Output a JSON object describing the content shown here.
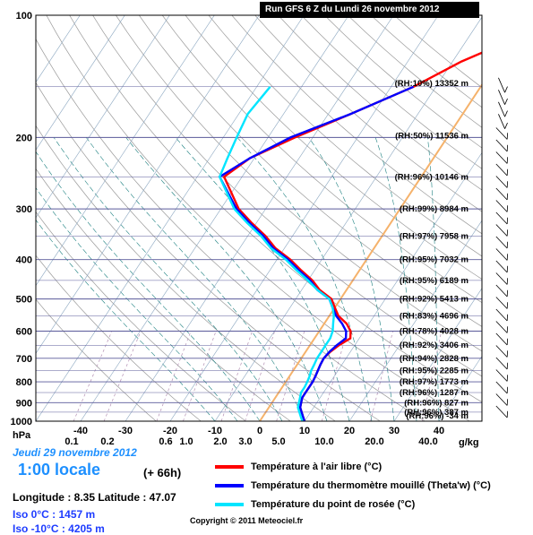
{
  "header": {
    "run_title": "Run GFS 6 Z du Lundi 26 novembre 2012"
  },
  "info": {
    "date": "Jeudi 29 novembre 2012",
    "local_time": "1:00 locale",
    "forecast_offset": "(+ 66h)",
    "coords": "Longitude : 8.35  Latitude : 47.07",
    "iso0": "Iso 0°C : 1457 m",
    "iso10": "Iso -10°C : 4205 m",
    "copyright": "Copyright © 2011 Meteociel.fr"
  },
  "legend": [
    {
      "label": "Température à l'air libre (°C)",
      "color": "#ff0000"
    },
    {
      "label": "Température du thermomètre mouillé (Theta'w) (°C)",
      "color": "#0000ff"
    },
    {
      "label": "Température du point de rosée (°C)",
      "color": "#00e5ff"
    }
  ],
  "colors": {
    "isobar": "#5a5a9a",
    "dry_adiabat": "#999999",
    "moist_adiabat": "#1a7f7f",
    "mixing_ratio": "#b38fb3",
    "iso0": "#f5b26b"
  },
  "chart_data": {
    "type": "line",
    "title": "Run GFS 6 Z du Lundi 26 novembre 2012",
    "y_axis_label": "hPa",
    "y_scale": "log",
    "y_range": [
      1000,
      100
    ],
    "y_ticks": [
      100,
      200,
      300,
      400,
      500,
      600,
      700,
      800,
      900,
      1000
    ],
    "x_ticks": [
      -40,
      -30,
      -20,
      -10,
      0,
      10,
      20,
      30,
      40
    ],
    "mixing_ratio_label": "g/kg",
    "mixing_ratio_ticks": [
      "0.1",
      "0.2",
      "0.6",
      "1.0",
      "2.0",
      "3.0",
      "5.0",
      "10.0",
      "20.0",
      "40.0"
    ],
    "series": [
      {
        "name": "Température à l'air libre (°C)",
        "color": "#ff0000",
        "points": [
          [
            10,
            1000
          ],
          [
            9,
            975
          ],
          [
            8,
            950
          ],
          [
            7,
            925
          ],
          [
            6.5,
            900
          ],
          [
            6,
            875
          ],
          [
            6,
            850
          ],
          [
            6,
            825
          ],
          [
            6,
            800
          ],
          [
            5.8,
            775
          ],
          [
            5.5,
            750
          ],
          [
            5.2,
            725
          ],
          [
            5,
            700
          ],
          [
            5.5,
            675
          ],
          [
            6.5,
            650
          ],
          [
            8,
            625
          ],
          [
            7,
            600
          ],
          [
            5,
            575
          ],
          [
            2,
            550
          ],
          [
            0,
            525
          ],
          [
            -2,
            500
          ],
          [
            -6,
            475
          ],
          [
            -9,
            450
          ],
          [
            -13,
            425
          ],
          [
            -17,
            400
          ],
          [
            -22,
            375
          ],
          [
            -26,
            350
          ],
          [
            -31,
            325
          ],
          [
            -36,
            300
          ],
          [
            -44,
            250
          ],
          [
            -41,
            225
          ],
          [
            -34,
            200
          ],
          [
            -25,
            175
          ],
          [
            -15,
            150
          ],
          [
            -8,
            130
          ],
          [
            0,
            115
          ],
          [
            8,
            100
          ]
        ]
      },
      {
        "name": "Température du thermomètre mouillé (Theta'w) (°C)",
        "color": "#0000ff",
        "points": [
          [
            10,
            1000
          ],
          [
            9,
            975
          ],
          [
            8,
            950
          ],
          [
            7,
            925
          ],
          [
            6.5,
            900
          ],
          [
            6,
            875
          ],
          [
            6,
            850
          ],
          [
            6,
            825
          ],
          [
            6,
            800
          ],
          [
            5.8,
            775
          ],
          [
            5.5,
            750
          ],
          [
            5.2,
            725
          ],
          [
            5,
            700
          ],
          [
            5.3,
            675
          ],
          [
            6,
            650
          ],
          [
            7,
            625
          ],
          [
            6,
            600
          ],
          [
            4,
            575
          ],
          [
            1.5,
            550
          ],
          [
            -0.5,
            525
          ],
          [
            -2.5,
            500
          ],
          [
            -6.5,
            475
          ],
          [
            -9.5,
            450
          ],
          [
            -13.5,
            425
          ],
          [
            -17.5,
            400
          ],
          [
            -22.5,
            375
          ],
          [
            -26.5,
            350
          ],
          [
            -31.5,
            325
          ],
          [
            -36.5,
            300
          ],
          [
            -45,
            250
          ],
          [
            -41,
            225
          ],
          [
            -35,
            200
          ],
          [
            -25,
            175
          ],
          [
            -15,
            150
          ]
        ]
      },
      {
        "name": "Température du point de rosée (°C)",
        "color": "#00e5ff",
        "points": [
          [
            9.5,
            1000
          ],
          [
            8.5,
            975
          ],
          [
            7.5,
            950
          ],
          [
            6.5,
            925
          ],
          [
            6,
            900
          ],
          [
            5.5,
            875
          ],
          [
            5,
            850
          ],
          [
            5,
            825
          ],
          [
            4.8,
            800
          ],
          [
            4.5,
            775
          ],
          [
            4,
            750
          ],
          [
            3.8,
            725
          ],
          [
            3.5,
            700
          ],
          [
            3.5,
            675
          ],
          [
            3.5,
            650
          ],
          [
            3.5,
            625
          ],
          [
            3,
            600
          ],
          [
            2,
            575
          ],
          [
            1,
            550
          ],
          [
            -0.5,
            525
          ],
          [
            -2.5,
            500
          ],
          [
            -6.5,
            475
          ],
          [
            -10,
            450
          ],
          [
            -14,
            425
          ],
          [
            -18,
            400
          ],
          [
            -23,
            375
          ],
          [
            -27,
            350
          ],
          [
            -32,
            325
          ],
          [
            -37,
            300
          ],
          [
            -45,
            250
          ],
          [
            -46,
            225
          ],
          [
            -47,
            200
          ],
          [
            -48,
            175
          ],
          [
            -47,
            150
          ]
        ]
      }
    ],
    "level_labels": [
      {
        "p": 147,
        "text": "(RH:10%) 13352 m"
      },
      {
        "p": 198,
        "text": "(RH:50%) 11536 m"
      },
      {
        "p": 250,
        "text": "(RH:96%) 10146 m"
      },
      {
        "p": 300,
        "text": "(RH:99%) 8984 m"
      },
      {
        "p": 350,
        "text": "(RH:97%) 7958 m"
      },
      {
        "p": 400,
        "text": "(RH:95%) 7032 m"
      },
      {
        "p": 450,
        "text": "(RH:95%) 6189 m"
      },
      {
        "p": 500,
        "text": "(RH:92%) 5413 m"
      },
      {
        "p": 550,
        "text": "(RH:83%) 4696 m"
      },
      {
        "p": 600,
        "text": "(RH:78%) 4028 m"
      },
      {
        "p": 650,
        "text": "(RH:92%) 3406 m"
      },
      {
        "p": 700,
        "text": "(RH:94%) 2828 m"
      },
      {
        "p": 750,
        "text": "(RH:95%) 2285 m"
      },
      {
        "p": 800,
        "text": "(RH:97%) 1773 m"
      },
      {
        "p": 850,
        "text": "(RH:96%) 1287 m"
      },
      {
        "p": 900,
        "text": "(RH:96%) 827 m"
      },
      {
        "p": 950,
        "text": "(RH:96%) 387 m"
      },
      {
        "p": 1000,
        "text": "(RH:96%) -34 m"
      }
    ]
  }
}
